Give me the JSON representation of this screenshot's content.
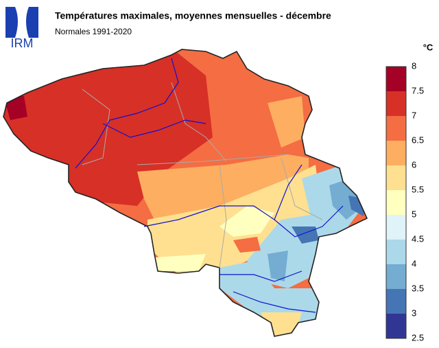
{
  "logo": "IRM",
  "header": {
    "title": "Températures maximales, moyennes mensuelles - décembre",
    "subtitle": "Normales 1991-2020"
  },
  "legend": {
    "unit": "°C",
    "ticks": [
      8,
      7.5,
      7,
      6.5,
      6,
      5.5,
      5,
      4.5,
      4,
      3.5,
      3,
      2.5
    ],
    "colors": [
      "#a50026",
      "#d73027",
      "#f46d43",
      "#fdae61",
      "#fee090",
      "#ffffbf",
      "#e0f3f8",
      "#abd9e9",
      "#74add1",
      "#4575b4",
      "#313695"
    ]
  }
}
